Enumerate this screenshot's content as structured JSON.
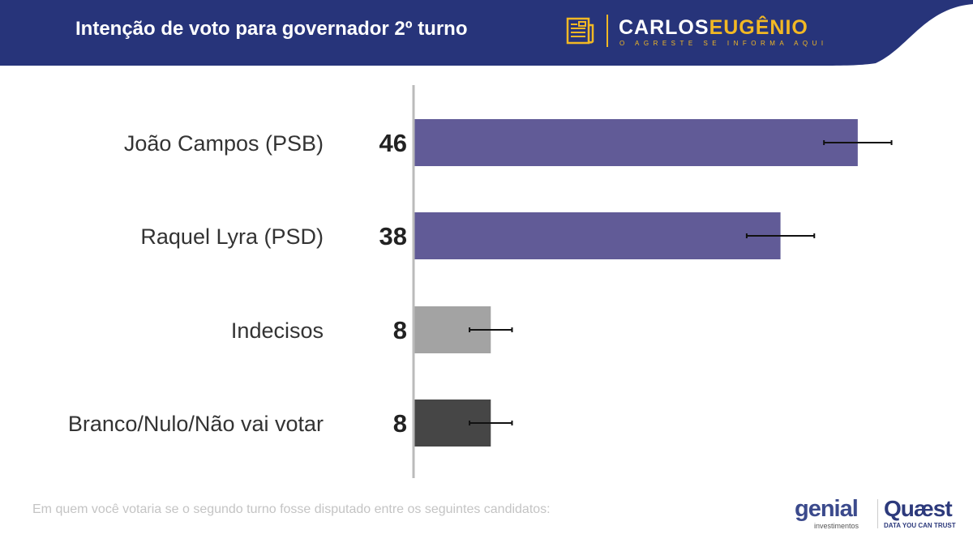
{
  "header": {
    "title": "Intenção de voto para governador 2º turno",
    "brand_white": "CARLOS",
    "brand_yellow": "EUGÊNIO",
    "tagline": "O AGRESTE SE INFORMA AQUI"
  },
  "footer": {
    "question": "Em quem você votaria se o segundo turno fosse disputado entre os seguintes candidatos:",
    "genial": "genial",
    "genial_sub": "investimentos",
    "quaest": "Quæst",
    "quaest_sub": "DATA YOU CAN TRUST"
  },
  "colors": {
    "header": "#27347a",
    "candidate": "#615b97",
    "undecided": "#a3a3a3",
    "blank": "#464646"
  },
  "chart_data": {
    "type": "bar",
    "orientation": "horizontal",
    "title": "Intenção de voto para governador 2º turno",
    "categories": [
      "João Campos (PSB)",
      "Raquel Lyra (PSD)",
      "Indecisos",
      "Branco/Nulo/Não vai votar"
    ],
    "values": [
      46,
      38,
      8,
      8
    ],
    "labels": [
      "46",
      "38",
      "8",
      "8"
    ],
    "error_margin": [
      3.5,
      3.5,
      2.2,
      2.2
    ],
    "bar_colors": [
      "#615b97",
      "#615b97",
      "#a3a3a3",
      "#464646"
    ],
    "xlim": [
      0,
      55
    ],
    "grid": false
  }
}
